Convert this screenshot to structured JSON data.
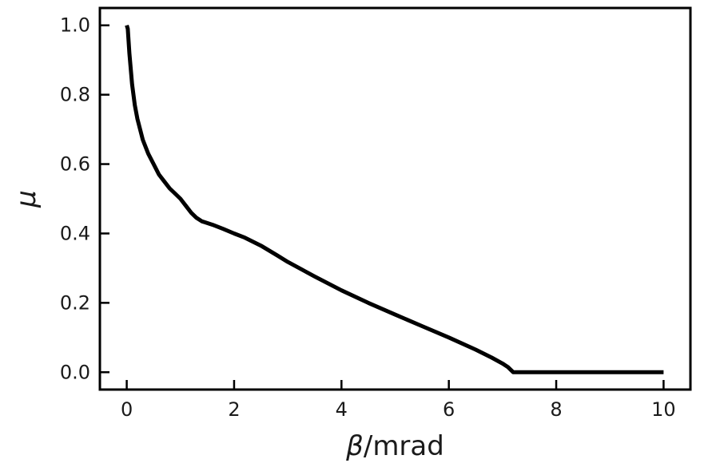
{
  "chart_data": {
    "type": "line",
    "xlabel": {
      "symbol": "β",
      "unit": "/mrad"
    },
    "ylabel": "μ",
    "xlim": [
      -0.5,
      10.5
    ],
    "ylim": [
      -0.05,
      1.05
    ],
    "xticks": [
      0,
      2,
      4,
      6,
      8,
      10
    ],
    "xtick_labels": [
      "0",
      "2",
      "4",
      "6",
      "8",
      "10"
    ],
    "yticks": [
      0.0,
      0.2,
      0.4,
      0.6,
      0.8,
      1.0
    ],
    "ytick_labels": [
      "0.0",
      "0.2",
      "0.4",
      "0.6",
      "0.8",
      "1.0"
    ],
    "grid": false,
    "series": [
      {
        "color": "#000000",
        "x": [
          0.0,
          0.02,
          0.05,
          0.1,
          0.15,
          0.2,
          0.3,
          0.4,
          0.5,
          0.6,
          0.7,
          0.8,
          0.9,
          1.0,
          1.1,
          1.2,
          1.3,
          1.4,
          1.6,
          1.8,
          2.0,
          2.2,
          2.5,
          2.8,
          3.0,
          3.5,
          4.0,
          4.5,
          5.0,
          5.5,
          6.0,
          6.5,
          6.8,
          7.0,
          7.1,
          7.2,
          7.5,
          8.0,
          9.0,
          10.0
        ],
        "y": [
          1.0,
          0.99,
          0.92,
          0.83,
          0.77,
          0.73,
          0.67,
          0.63,
          0.6,
          0.57,
          0.55,
          0.53,
          0.515,
          0.5,
          0.48,
          0.46,
          0.445,
          0.435,
          0.425,
          0.413,
          0.4,
          0.388,
          0.365,
          0.337,
          0.318,
          0.276,
          0.236,
          0.2,
          0.166,
          0.133,
          0.1,
          0.065,
          0.042,
          0.025,
          0.015,
          0.0,
          0.0,
          0.0,
          0.0,
          0.0
        ]
      }
    ]
  }
}
